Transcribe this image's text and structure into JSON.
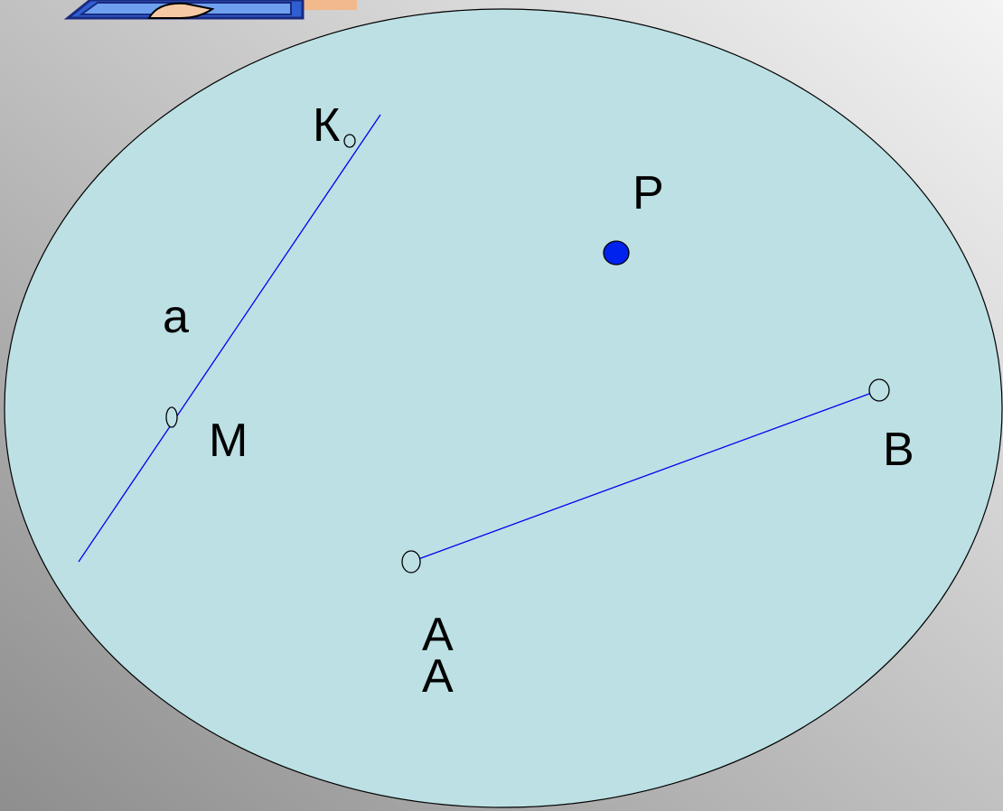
{
  "nodes": [
    {
      "label": "К"
    },
    {
      "label": "P"
    },
    {
      "label": "a"
    },
    {
      "label": "M"
    },
    {
      "label": "B"
    },
    {
      "label": "A"
    },
    {
      "label": "A"
    }
  ]
}
